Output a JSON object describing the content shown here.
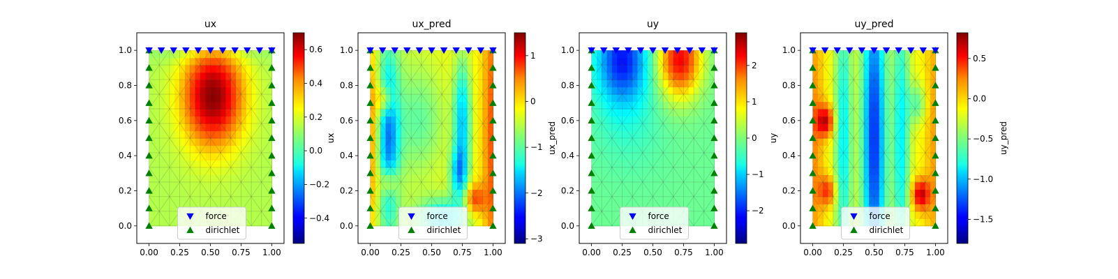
{
  "chart_data": [
    {
      "type": "heatmap",
      "title": "ux",
      "colorbar_label": "",
      "xlim": [
        -0.1,
        1.1
      ],
      "ylim": [
        -0.1,
        1.1
      ],
      "x_ticks": [
        "0.00",
        "0.25",
        "0.50",
        "0.75",
        "1.00"
      ],
      "y_ticks": [
        "0.0",
        "0.2",
        "0.4",
        "0.6",
        "0.8",
        "1.0"
      ],
      "clim": [
        -0.55,
        0.7
      ],
      "cbar_ticks": [
        -0.4,
        -0.2,
        0.0,
        0.2,
        0.4,
        0.6
      ],
      "cbar_tick_labels": [
        "−0.4",
        "−0.2",
        "0.0",
        "0.2",
        "0.4",
        "0.6"
      ],
      "field": "ux_true",
      "legend": [
        "force",
        "dirichlet"
      ]
    },
    {
      "type": "heatmap",
      "title": "ux_pred",
      "colorbar_label": "ux",
      "xlim": [
        -0.1,
        1.1
      ],
      "ylim": [
        -0.1,
        1.1
      ],
      "x_ticks": [
        "0.00",
        "0.25",
        "0.50",
        "0.75",
        "1.00"
      ],
      "y_ticks": [
        "0.0",
        "0.2",
        "0.4",
        "0.6",
        "0.8",
        "1.0"
      ],
      "clim": [
        -3.1,
        1.5
      ],
      "cbar_ticks": [
        -3,
        -2,
        -1,
        0,
        1
      ],
      "cbar_tick_labels": [
        "−3",
        "−2",
        "−1",
        "0",
        "1"
      ],
      "field": "ux_pred",
      "legend": [
        "force",
        "dirichlet"
      ]
    },
    {
      "type": "heatmap",
      "title": "uy",
      "colorbar_label": "ux_pred",
      "xlim": [
        -0.1,
        1.1
      ],
      "ylim": [
        -0.1,
        1.1
      ],
      "x_ticks": [
        "0.00",
        "0.25",
        "0.50",
        "0.75",
        "1.00"
      ],
      "y_ticks": [
        "0.0",
        "0.2",
        "0.4",
        "0.6",
        "0.8",
        "1.0"
      ],
      "clim": [
        -2.9,
        2.9
      ],
      "cbar_ticks": [
        -2,
        -1,
        0,
        1,
        2
      ],
      "cbar_tick_labels": [
        "−2",
        "−1",
        "0",
        "1",
        "2"
      ],
      "field": "uy_true",
      "legend": [
        "force",
        "dirichlet"
      ]
    },
    {
      "type": "heatmap",
      "title": "uy_pred",
      "colorbar_label": "uy",
      "xlim": [
        -0.1,
        1.1
      ],
      "ylim": [
        -0.1,
        1.1
      ],
      "x_ticks": [
        "0.00",
        "0.25",
        "0.50",
        "0.75",
        "1.00"
      ],
      "y_ticks": [
        "0.0",
        "0.2",
        "0.4",
        "0.6",
        "0.8",
        "1.0"
      ],
      "clim": [
        -1.8,
        0.82
      ],
      "cbar_ticks": [
        -1.5,
        -1.0,
        -0.5,
        0.0,
        0.5
      ],
      "cbar_tick_labels": [
        "−1.5",
        "−1.0",
        "−0.5",
        "0.0",
        "0.5"
      ],
      "field": "uy_pred",
      "legend": [
        "force",
        "dirichlet"
      ]
    }
  ],
  "extra_colorbar_label": "uy_pred",
  "force_points_x": [
    0,
    0.1,
    0.2,
    0.3,
    0.4,
    0.5,
    0.6,
    0.7,
    0.8,
    0.9,
    1.0
  ],
  "force_y": 1.0,
  "dirichlet_y": [
    0.0,
    0.1,
    0.2,
    0.3,
    0.4,
    0.5,
    0.6,
    0.7,
    0.8,
    0.9,
    1.0
  ],
  "colors": {
    "force": "#0000ff",
    "dirichlet": "#008000"
  }
}
